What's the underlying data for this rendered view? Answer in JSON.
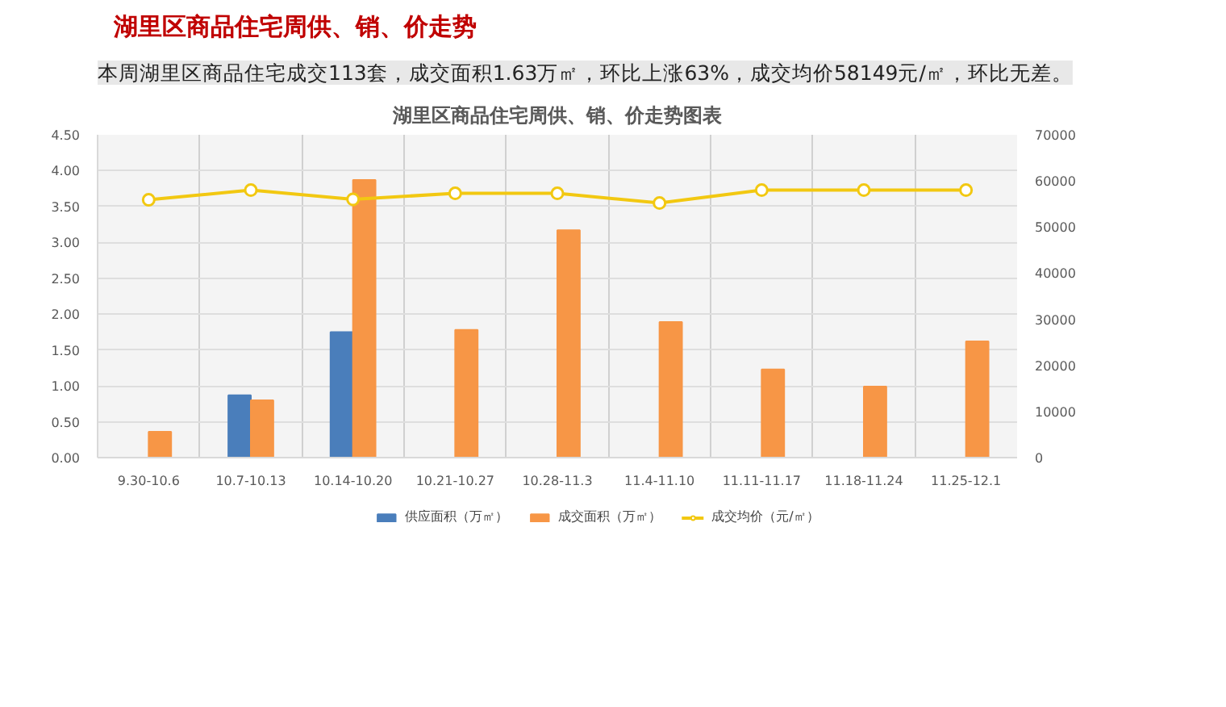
{
  "chart_data": {
    "type": "bar",
    "title": "湖里区商品住宅周供、销、价走势图表",
    "annotations": [
      "湖里区商品住宅周供、销、价走势",
      "本周湖里区商品住宅成交113套，成交面积1.63万㎡，环比上涨63%，成交均价58149元/㎡，环比无差。"
    ],
    "categories": [
      "9.30-10.6",
      "10.7-10.13",
      "10.14-10.20",
      "10.21-10.27",
      "10.28-11.3",
      "11.4-11.10",
      "11.11-11.17",
      "11.18-11.24",
      "11.25-12.1"
    ],
    "series": [
      {
        "name": "供应面积（万㎡）",
        "color": "#4a7ebb",
        "values": [
          null,
          0.87,
          1.75,
          null,
          null,
          null,
          null,
          null,
          null
        ]
      },
      {
        "name": "成交面积（万㎡）",
        "color": "#f79646",
        "values": [
          0.36,
          0.8,
          3.87,
          1.78,
          3.17,
          1.89,
          1.23,
          0.99,
          1.62
        ]
      },
      {
        "name": "成交均价（元/㎡）",
        "type": "line",
        "axis": "y2",
        "marker": "circle",
        "color": "#f2c811",
        "values": [
          55900,
          58000,
          56000,
          57300,
          57300,
          55200,
          58000,
          58000,
          58000
        ]
      }
    ],
    "ylim": [
      0,
      4.5
    ],
    "yticks": [
      {
        "value": 0,
        "label": "0.00"
      },
      {
        "value": 0.5,
        "label": "0.50"
      },
      {
        "value": 1,
        "label": "1.00"
      },
      {
        "value": 1.5,
        "label": "1.50"
      },
      {
        "value": 2,
        "label": "2.00"
      },
      {
        "value": 2.5,
        "label": "2.50"
      },
      {
        "value": 3,
        "label": "3.00"
      },
      {
        "value": 3.5,
        "label": "3.50"
      },
      {
        "value": 4,
        "label": "4.00"
      },
      {
        "value": 4.5,
        "label": "4.50"
      }
    ],
    "y2lim": [
      0,
      70000
    ],
    "y2ticks": [
      0,
      10000,
      20000,
      30000,
      40000,
      50000,
      60000,
      70000
    ],
    "grid": true,
    "legend": "bottom"
  }
}
